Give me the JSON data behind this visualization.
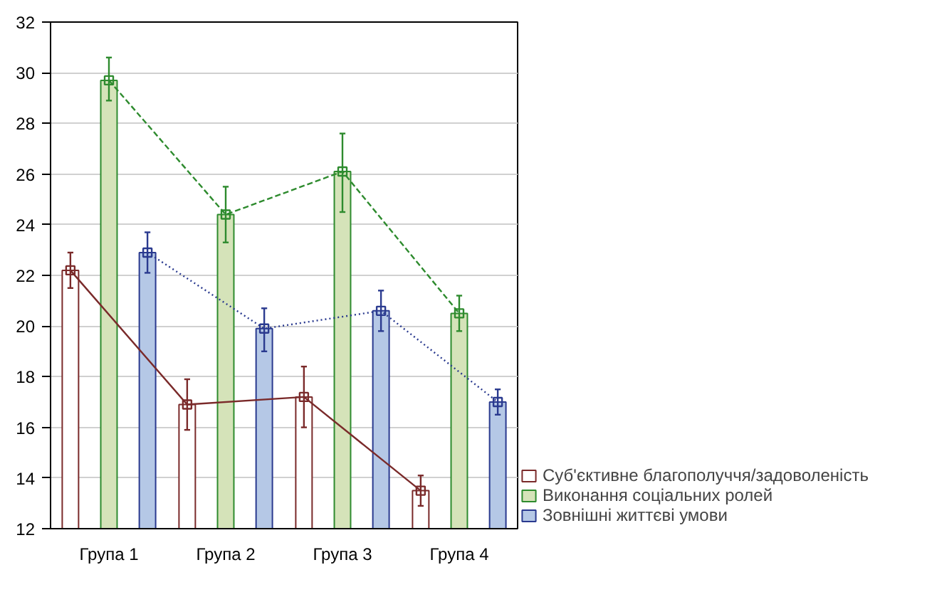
{
  "chart_data": {
    "type": "bar",
    "categories": [
      "Група 1",
      "Група 2",
      "Група 3",
      "Група 4"
    ],
    "series": [
      {
        "name": "Суб'єктивне благополуччя/задоволеність",
        "color": "#ffffff",
        "values": [
          22.2,
          16.9,
          17.2,
          13.5
        ],
        "errors": [
          [
            21.5,
            22.9
          ],
          [
            15.9,
            17.9
          ],
          [
            16.0,
            18.4
          ],
          [
            12.9,
            14.1
          ]
        ]
      },
      {
        "name": "Виконання соціальних ролей",
        "color": "#d5e3b9",
        "values": [
          29.7,
          24.4,
          26.1,
          20.5
        ],
        "errors": [
          [
            28.9,
            30.6
          ],
          [
            23.3,
            25.5
          ],
          [
            24.5,
            27.6
          ],
          [
            19.8,
            21.2
          ]
        ]
      },
      {
        "name": "Зовнішні життєві умови",
        "color": "#b5c8e6",
        "values": [
          22.9,
          19.9,
          20.6,
          17.0
        ],
        "errors": [
          [
            22.1,
            23.7
          ],
          [
            19.0,
            20.7
          ],
          [
            19.8,
            21.4
          ],
          [
            16.5,
            17.5
          ]
        ]
      },
      {
        "type": "line",
        "color": "#7a2a2a",
        "line_style": "solid",
        "values": [
          22.2,
          16.9,
          17.2,
          13.5
        ]
      },
      {
        "type": "line",
        "color": "#2e8b2e",
        "line_style": "dashed",
        "values": [
          29.7,
          24.4,
          26.1,
          20.5
        ]
      },
      {
        "type": "line",
        "color": "#2a3a8f",
        "line_style": "dotted",
        "values": [
          22.9,
          19.9,
          20.6,
          17.0
        ]
      }
    ],
    "ylim": [
      12,
      32
    ],
    "yticks": [
      12,
      14,
      16,
      18,
      20,
      22,
      24,
      26,
      28,
      30,
      32
    ],
    "grid": "y",
    "marker": "square",
    "legend": "bottom right"
  }
}
